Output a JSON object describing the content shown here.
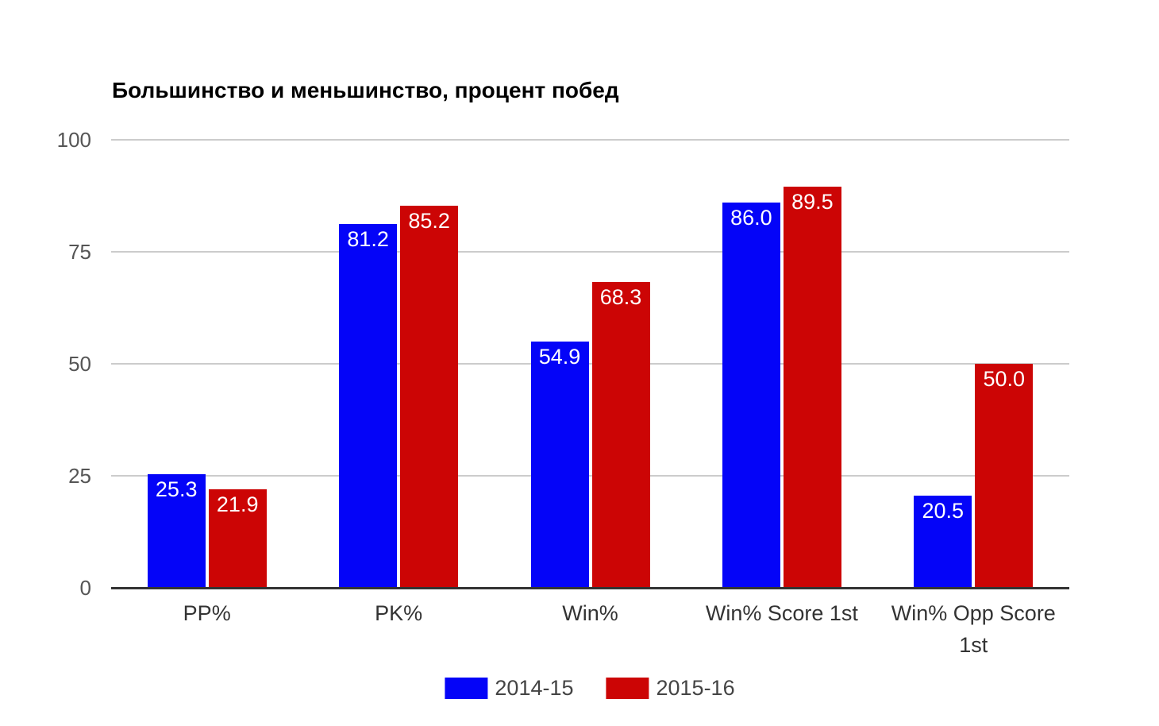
{
  "chart_data": {
    "type": "bar",
    "title": "Большинство и меньшинство, процент побед",
    "categories": [
      "PP%",
      "PK%",
      "Win%",
      "Win% Score 1st",
      "Win% Opp Score 1st"
    ],
    "series": [
      {
        "name": "2014-15",
        "color": "#0404f8",
        "values": [
          25.3,
          81.2,
          54.9,
          86.0,
          20.5
        ]
      },
      {
        "name": "2015-16",
        "color": "#cc0505",
        "values": [
          21.9,
          85.2,
          68.3,
          89.5,
          50.0
        ]
      }
    ],
    "xlabel": "",
    "ylabel": "",
    "ylim": [
      0,
      100
    ],
    "yticks": [
      0,
      25,
      50,
      75,
      100
    ],
    "grid": true,
    "legend_position": "bottom",
    "value_labels": "inside-top",
    "value_label_decimals": 1,
    "style": {
      "background": "#ffffff",
      "gridline_color": "#cccccc",
      "axis_line_color": "#333333",
      "ytick_label_color": "#555555",
      "xtick_label_color": "#333333",
      "title_color": "#000000",
      "value_label_color": "#ffffff",
      "legend_text_color": "#444444"
    }
  }
}
